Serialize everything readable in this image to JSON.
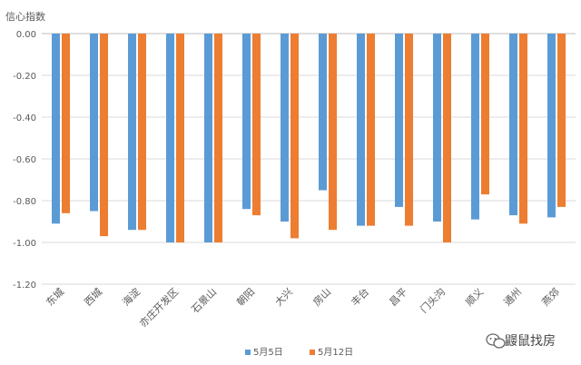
{
  "chart_data": {
    "type": "bar",
    "ylabel": "信心指数",
    "ylim": [
      -1.2,
      0.0
    ],
    "yticks": [
      "0.00",
      "-0.20",
      "-0.40",
      "-0.60",
      "-0.80",
      "-1.00",
      "-1.20"
    ],
    "grid": true,
    "legend_position": "bottom",
    "categories": [
      "东城",
      "西城",
      "海淀",
      "亦庄开发区",
      "石景山",
      "朝阳",
      "大兴",
      "房山",
      "丰台",
      "昌平",
      "门头沟",
      "顺义",
      "通州",
      "燕郊"
    ],
    "series": [
      {
        "name": "5月5日",
        "color": "#5b9bd5",
        "values": [
          -0.91,
          -0.85,
          -0.94,
          -1.0,
          -1.0,
          -0.84,
          -0.9,
          -0.75,
          -0.92,
          -0.83,
          -0.9,
          -0.89,
          -0.87,
          -0.88
        ]
      },
      {
        "name": "5月12日",
        "color": "#ed7d31",
        "values": [
          -0.86,
          -0.97,
          -0.94,
          -1.0,
          -1.0,
          -0.87,
          -0.98,
          -0.94,
          -0.92,
          -0.92,
          -1.0,
          -0.77,
          -0.91,
          -0.83
        ]
      }
    ]
  },
  "watermark": {
    "text": "鼹鼠找房",
    "icon": "wechat-icon"
  }
}
